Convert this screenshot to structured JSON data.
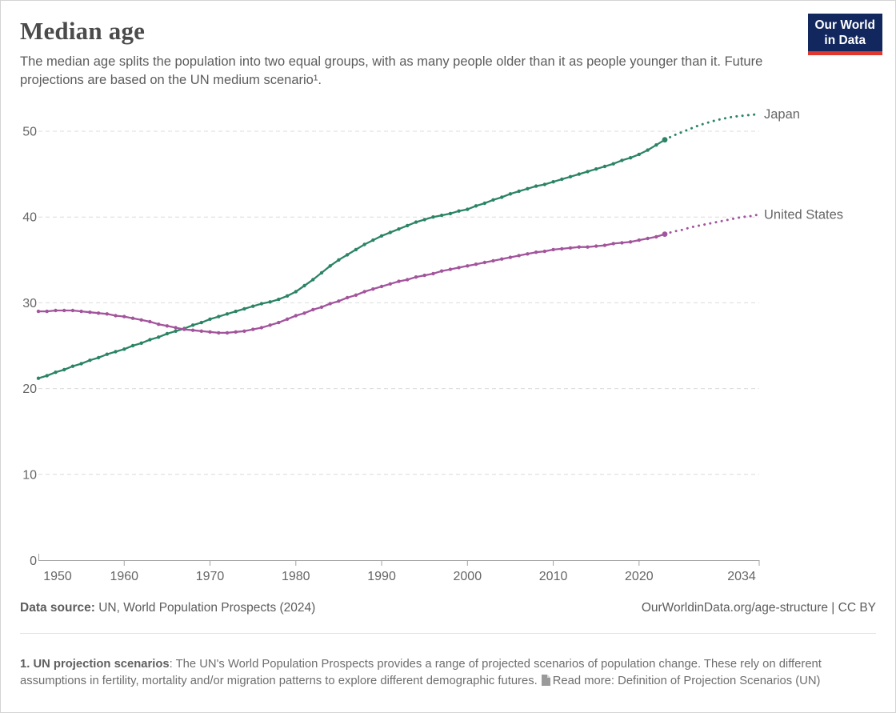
{
  "header": {
    "title": "Median age",
    "subtitle": "The median age splits the population into two equal groups, with as many people older than it as people younger than it. Future projections are based on the UN medium scenario¹.",
    "logo": {
      "line1": "Our World",
      "line2": "in Data",
      "bg_color": "#12275d",
      "accent_color": "#e0372e"
    }
  },
  "chart_data": {
    "type": "line",
    "title": "Median age",
    "xlabel": "",
    "ylabel": "",
    "xlim": [
      1950,
      2034
    ],
    "ylim": [
      0,
      55
    ],
    "x_ticks": [
      1950,
      1960,
      1970,
      1980,
      1990,
      2000,
      2010,
      2020,
      2034
    ],
    "y_ticks": [
      0,
      10,
      20,
      30,
      40,
      50
    ],
    "grid": "dashed-horizontal",
    "legend_position": "right-end-of-line",
    "colors": {
      "grid": "#dcdcdc",
      "axis": "#a3a3a3",
      "tick_text": "#666666"
    },
    "series": [
      {
        "name": "Japan",
        "color": "#2c8465",
        "start_year": 1950,
        "values": [
          21.2,
          21.5,
          21.9,
          22.2,
          22.6,
          22.9,
          23.3,
          23.6,
          24.0,
          24.3,
          24.6,
          25.0,
          25.3,
          25.7,
          26.0,
          26.4,
          26.7,
          27.0,
          27.4,
          27.7,
          28.1,
          28.4,
          28.7,
          29.0,
          29.3,
          29.6,
          29.9,
          30.1,
          30.4,
          30.8,
          31.3,
          32.0,
          32.7,
          33.5,
          34.3,
          35.0,
          35.6,
          36.2,
          36.8,
          37.3,
          37.8,
          38.2,
          38.6,
          39.0,
          39.4,
          39.7,
          40.0,
          40.2,
          40.4,
          40.7,
          40.9,
          41.3,
          41.6,
          42.0,
          42.3,
          42.7,
          43.0,
          43.3,
          43.6,
          43.8,
          44.1,
          44.4,
          44.7,
          45.0,
          45.3,
          45.6,
          45.9,
          46.2,
          46.6,
          46.9,
          47.3,
          47.8,
          48.4,
          49.0
        ],
        "projection": {
          "start_year": 2023,
          "style": "dotted",
          "values": [
            49.0,
            49.5,
            49.9,
            50.3,
            50.7,
            51.0,
            51.3,
            51.5,
            51.7,
            51.8,
            51.9,
            52.0
          ]
        }
      },
      {
        "name": "United States",
        "color": "#a2559c",
        "start_year": 1950,
        "values": [
          29.0,
          29.0,
          29.1,
          29.1,
          29.1,
          29.0,
          28.9,
          28.8,
          28.7,
          28.5,
          28.4,
          28.2,
          28.0,
          27.8,
          27.5,
          27.3,
          27.1,
          26.9,
          26.8,
          26.7,
          26.6,
          26.5,
          26.5,
          26.6,
          26.7,
          26.9,
          27.1,
          27.4,
          27.7,
          28.1,
          28.5,
          28.8,
          29.2,
          29.5,
          29.9,
          30.2,
          30.6,
          30.9,
          31.3,
          31.6,
          31.9,
          32.2,
          32.5,
          32.7,
          33.0,
          33.2,
          33.4,
          33.7,
          33.9,
          34.1,
          34.3,
          34.5,
          34.7,
          34.9,
          35.1,
          35.3,
          35.5,
          35.7,
          35.9,
          36.0,
          36.2,
          36.3,
          36.4,
          36.5,
          36.5,
          36.6,
          36.7,
          36.9,
          37.0,
          37.1,
          37.3,
          37.5,
          37.7,
          38.0
        ],
        "projection": {
          "start_year": 2023,
          "style": "dotted",
          "values": [
            38.0,
            38.3,
            38.5,
            38.8,
            39.0,
            39.2,
            39.4,
            39.6,
            39.8,
            40.0,
            40.1,
            40.3
          ]
        }
      }
    ]
  },
  "footer": {
    "source_label": "Data source:",
    "source_value": "UN, World Population Prospects (2024)",
    "link_text": "OurWorldinData.org/age-structure | CC BY"
  },
  "footnote": {
    "bold": "1. UN projection scenarios",
    "body": ": The UN's World Population Prospects provides a range of projected scenarios of population change. These rely on different assumptions in fertility, mortality and/or migration patterns to explore different demographic futures.",
    "read_more": "Read more: Definition of Projection Scenarios (UN)"
  }
}
